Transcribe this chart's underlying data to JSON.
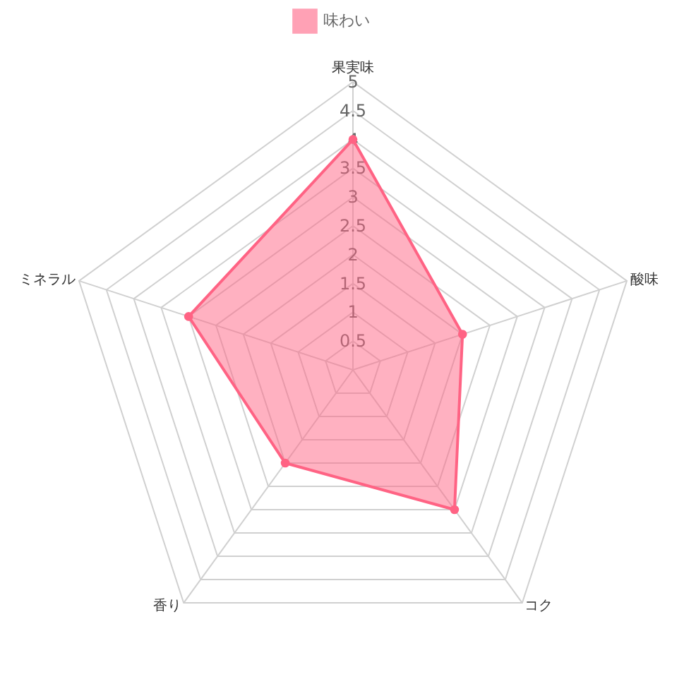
{
  "chart_data": {
    "type": "radar",
    "categories": [
      "果実味",
      "酸味",
      "コク",
      "香り",
      "ミネラル"
    ],
    "series": [
      {
        "name": "味わい",
        "color": "#ff6384",
        "values": [
          4,
          2,
          3,
          2,
          3
        ]
      }
    ],
    "ylim": [
      0,
      5
    ],
    "yticks": [
      0.5,
      1,
      1.5,
      2,
      2.5,
      3,
      3.5,
      4,
      4.5,
      5
    ],
    "grid": true,
    "legend": "top",
    "marker": "circle"
  }
}
